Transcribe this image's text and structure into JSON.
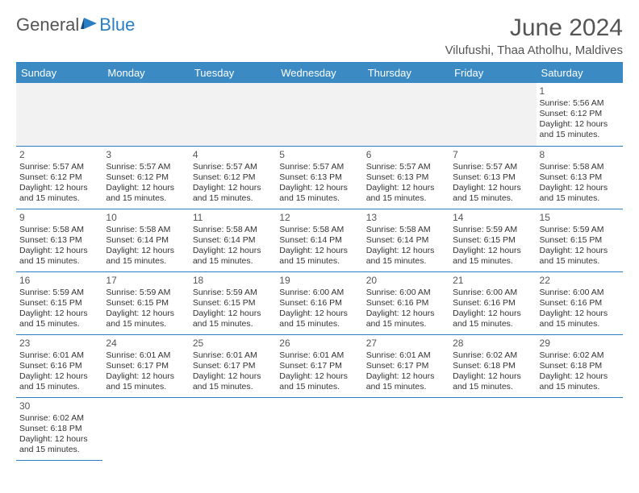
{
  "logo": {
    "text1": "General",
    "text2": "Blue"
  },
  "title": "June 2024",
  "location": "Vilufushi, Thaa Atholhu, Maldives",
  "colors": {
    "header_bg": "#3b8ac4",
    "header_text": "#ffffff",
    "border": "#2a7ec4",
    "empty_bg": "#f2f2f2",
    "text": "#333333",
    "title_text": "#555555"
  },
  "columns": [
    "Sunday",
    "Monday",
    "Tuesday",
    "Wednesday",
    "Thursday",
    "Friday",
    "Saturday"
  ],
  "weeks": [
    [
      null,
      null,
      null,
      null,
      null,
      null,
      {
        "n": "1",
        "sr": "5:56 AM",
        "ss": "6:12 PM",
        "dl": "12 hours and 15 minutes."
      }
    ],
    [
      {
        "n": "2",
        "sr": "5:57 AM",
        "ss": "6:12 PM",
        "dl": "12 hours and 15 minutes."
      },
      {
        "n": "3",
        "sr": "5:57 AM",
        "ss": "6:12 PM",
        "dl": "12 hours and 15 minutes."
      },
      {
        "n": "4",
        "sr": "5:57 AM",
        "ss": "6:12 PM",
        "dl": "12 hours and 15 minutes."
      },
      {
        "n": "5",
        "sr": "5:57 AM",
        "ss": "6:13 PM",
        "dl": "12 hours and 15 minutes."
      },
      {
        "n": "6",
        "sr": "5:57 AM",
        "ss": "6:13 PM",
        "dl": "12 hours and 15 minutes."
      },
      {
        "n": "7",
        "sr": "5:57 AM",
        "ss": "6:13 PM",
        "dl": "12 hours and 15 minutes."
      },
      {
        "n": "8",
        "sr": "5:58 AM",
        "ss": "6:13 PM",
        "dl": "12 hours and 15 minutes."
      }
    ],
    [
      {
        "n": "9",
        "sr": "5:58 AM",
        "ss": "6:13 PM",
        "dl": "12 hours and 15 minutes."
      },
      {
        "n": "10",
        "sr": "5:58 AM",
        "ss": "6:14 PM",
        "dl": "12 hours and 15 minutes."
      },
      {
        "n": "11",
        "sr": "5:58 AM",
        "ss": "6:14 PM",
        "dl": "12 hours and 15 minutes."
      },
      {
        "n": "12",
        "sr": "5:58 AM",
        "ss": "6:14 PM",
        "dl": "12 hours and 15 minutes."
      },
      {
        "n": "13",
        "sr": "5:58 AM",
        "ss": "6:14 PM",
        "dl": "12 hours and 15 minutes."
      },
      {
        "n": "14",
        "sr": "5:59 AM",
        "ss": "6:15 PM",
        "dl": "12 hours and 15 minutes."
      },
      {
        "n": "15",
        "sr": "5:59 AM",
        "ss": "6:15 PM",
        "dl": "12 hours and 15 minutes."
      }
    ],
    [
      {
        "n": "16",
        "sr": "5:59 AM",
        "ss": "6:15 PM",
        "dl": "12 hours and 15 minutes."
      },
      {
        "n": "17",
        "sr": "5:59 AM",
        "ss": "6:15 PM",
        "dl": "12 hours and 15 minutes."
      },
      {
        "n": "18",
        "sr": "5:59 AM",
        "ss": "6:15 PM",
        "dl": "12 hours and 15 minutes."
      },
      {
        "n": "19",
        "sr": "6:00 AM",
        "ss": "6:16 PM",
        "dl": "12 hours and 15 minutes."
      },
      {
        "n": "20",
        "sr": "6:00 AM",
        "ss": "6:16 PM",
        "dl": "12 hours and 15 minutes."
      },
      {
        "n": "21",
        "sr": "6:00 AM",
        "ss": "6:16 PM",
        "dl": "12 hours and 15 minutes."
      },
      {
        "n": "22",
        "sr": "6:00 AM",
        "ss": "6:16 PM",
        "dl": "12 hours and 15 minutes."
      }
    ],
    [
      {
        "n": "23",
        "sr": "6:01 AM",
        "ss": "6:16 PM",
        "dl": "12 hours and 15 minutes."
      },
      {
        "n": "24",
        "sr": "6:01 AM",
        "ss": "6:17 PM",
        "dl": "12 hours and 15 minutes."
      },
      {
        "n": "25",
        "sr": "6:01 AM",
        "ss": "6:17 PM",
        "dl": "12 hours and 15 minutes."
      },
      {
        "n": "26",
        "sr": "6:01 AM",
        "ss": "6:17 PM",
        "dl": "12 hours and 15 minutes."
      },
      {
        "n": "27",
        "sr": "6:01 AM",
        "ss": "6:17 PM",
        "dl": "12 hours and 15 minutes."
      },
      {
        "n": "28",
        "sr": "6:02 AM",
        "ss": "6:18 PM",
        "dl": "12 hours and 15 minutes."
      },
      {
        "n": "29",
        "sr": "6:02 AM",
        "ss": "6:18 PM",
        "dl": "12 hours and 15 minutes."
      }
    ],
    [
      {
        "n": "30",
        "sr": "6:02 AM",
        "ss": "6:18 PM",
        "dl": "12 hours and 15 minutes."
      },
      null,
      null,
      null,
      null,
      null,
      null
    ]
  ],
  "labels": {
    "sunrise": "Sunrise:",
    "sunset": "Sunset:",
    "daylight": "Daylight:"
  }
}
